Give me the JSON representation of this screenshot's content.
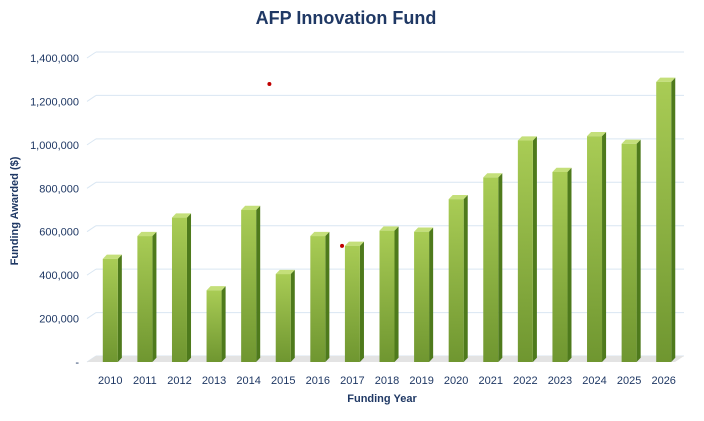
{
  "chart_data": {
    "type": "bar",
    "title": "AFP Innovation Fund",
    "xlabel": "Funding Year",
    "ylabel": "Funding Awarded ($)",
    "categories": [
      "2010",
      "2011",
      "2012",
      "2013",
      "2014",
      "2015",
      "2016",
      "2017",
      "2018",
      "2019",
      "2020",
      "2021",
      "2022",
      "2023",
      "2024",
      "2025",
      "2026"
    ],
    "values": [
      475000,
      580000,
      665000,
      330000,
      700000,
      405000,
      580000,
      535000,
      605000,
      600000,
      750000,
      850000,
      1020000,
      875000,
      1040000,
      1005000,
      1290000
    ],
    "ylim": [
      0,
      1400000
    ],
    "yticks": [
      {
        "value": 0,
        "label": "-"
      },
      {
        "value": 200000,
        "label": "200,000"
      },
      {
        "value": 400000,
        "label": "400,000"
      },
      {
        "value": 600000,
        "label": "600,000"
      },
      {
        "value": 800000,
        "label": "800,000"
      },
      {
        "value": 1000000,
        "label": "1,000,000"
      },
      {
        "value": 1200000,
        "label": "1,200,000"
      },
      {
        "value": 1400000,
        "label": "1,400,000"
      }
    ],
    "grid": true,
    "legend": "none",
    "colors": {
      "title": "#1f3864",
      "axis_text": "#1f3864",
      "grid": "#d9e6f2",
      "bar_front_top": "#a9cc55",
      "bar_front_bottom": "#6f9630",
      "bar_side": "#4e7a1c",
      "bar_top": "#c4df7a",
      "floor": "#e3e3e3",
      "marker": "#c00000"
    },
    "annotations": [
      {
        "type": "point",
        "x": "2014",
        "x_offset": 0.6,
        "y": 1280000
      },
      {
        "type": "point",
        "x": "2017",
        "x_offset": -0.3,
        "y": 535000
      }
    ]
  }
}
